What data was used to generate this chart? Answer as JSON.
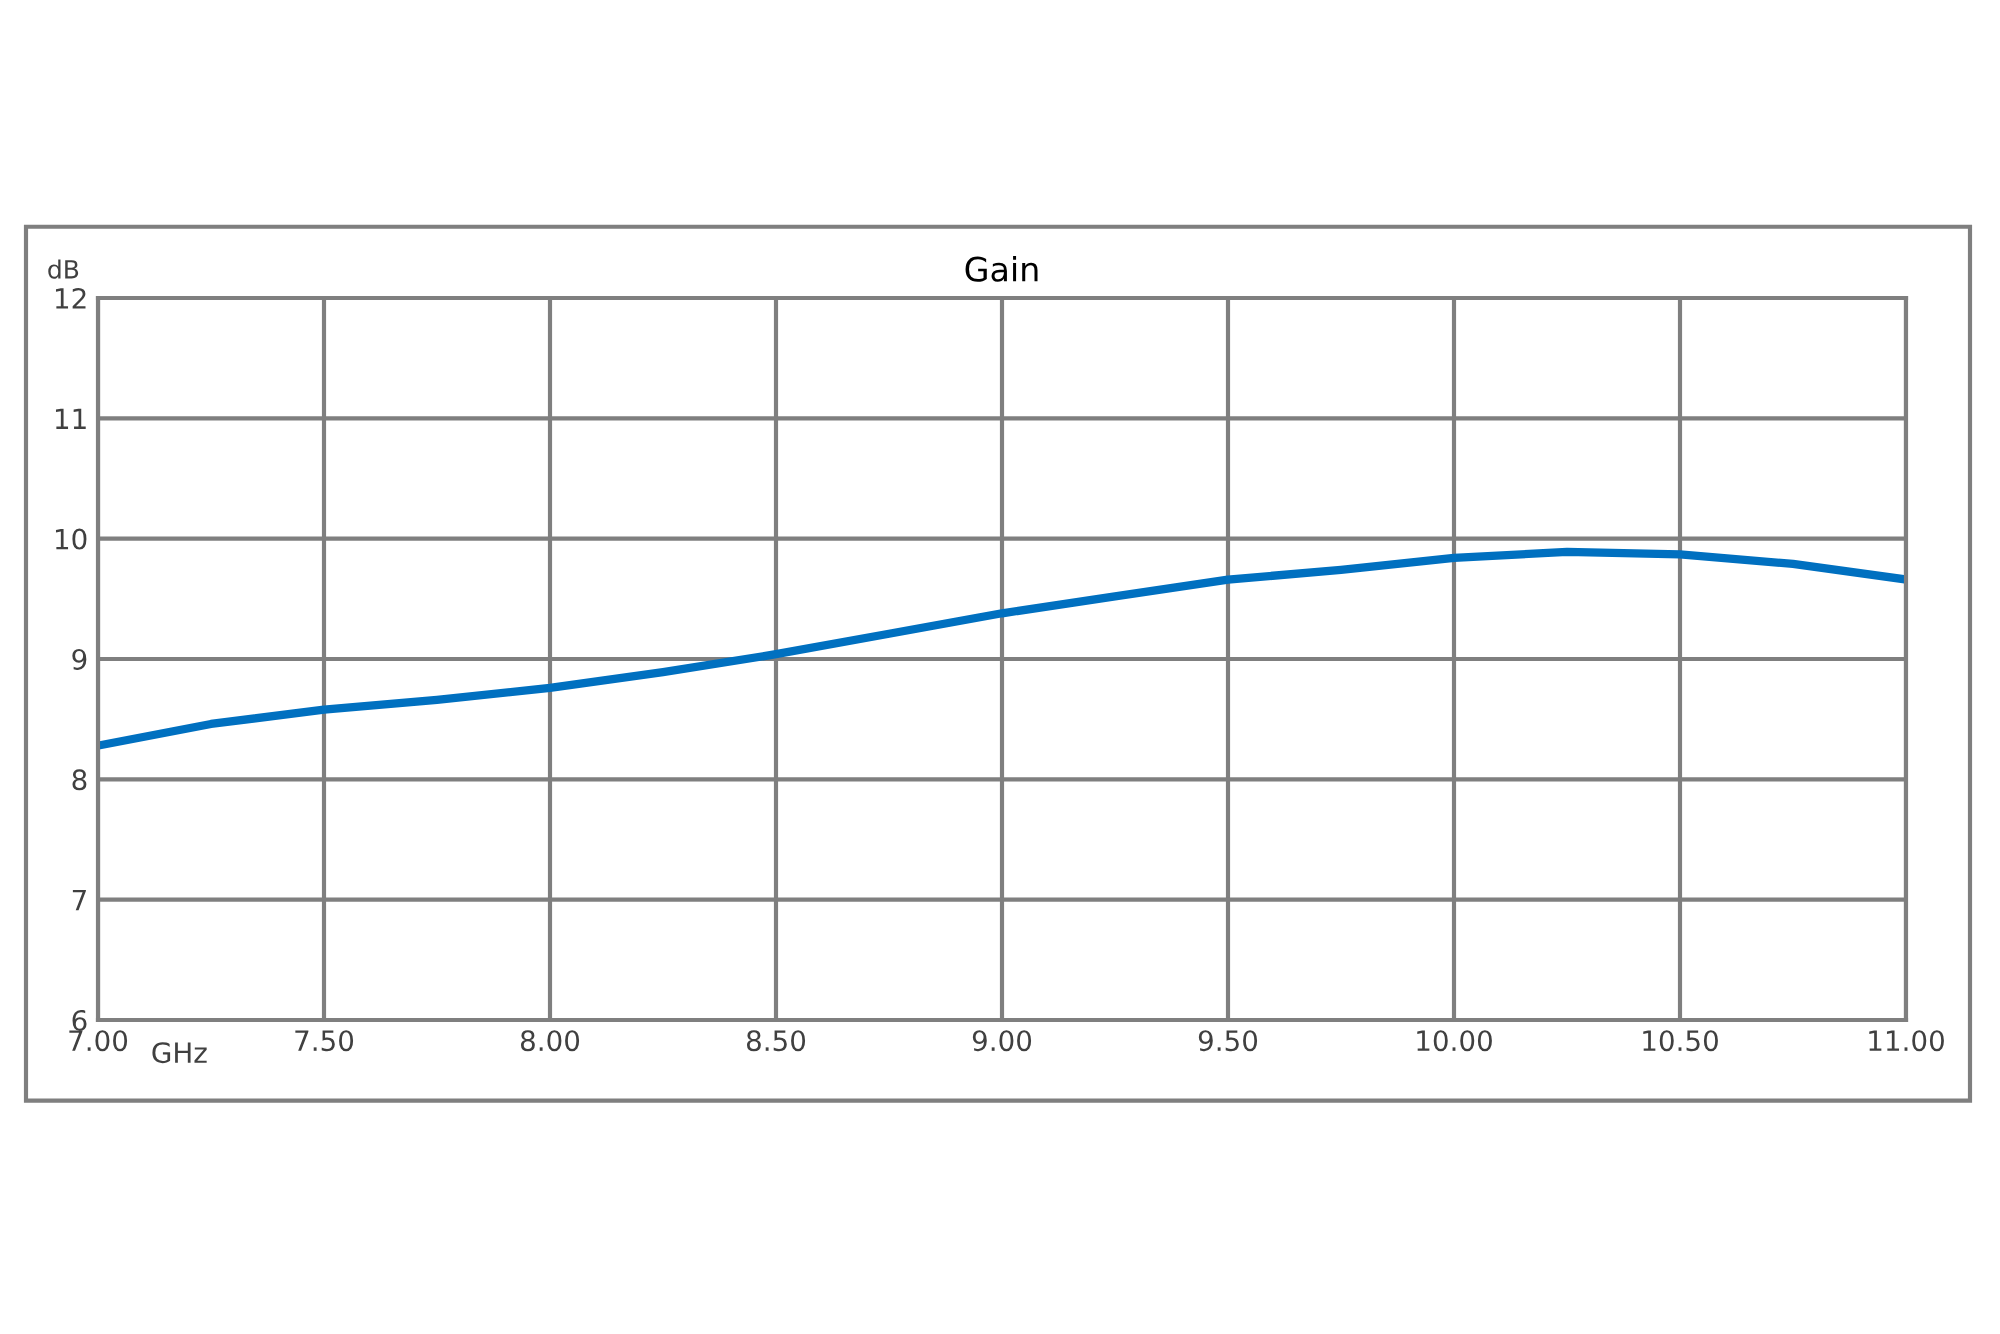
{
  "chart_data": {
    "type": "line",
    "title": "Gain",
    "xlabel": "GHz",
    "ylabel": "dB",
    "x": [
      7.0,
      7.25,
      7.5,
      7.75,
      8.0,
      8.25,
      8.5,
      8.75,
      9.0,
      9.25,
      9.5,
      9.75,
      10.0,
      10.25,
      10.5,
      10.75,
      11.0
    ],
    "series": [
      {
        "color": "#0070c0",
        "values": [
          8.28,
          8.46,
          8.58,
          8.66,
          8.76,
          8.89,
          9.04,
          9.21,
          9.38,
          9.52,
          9.66,
          9.74,
          9.84,
          9.89,
          9.87,
          9.79,
          9.66
        ]
      }
    ],
    "xlim": [
      7,
      11
    ],
    "ylim": [
      6,
      12
    ],
    "xticks": [
      {
        "value": 7,
        "label": "7.00"
      },
      {
        "value": 7.5,
        "label": "7.50"
      },
      {
        "value": 8,
        "label": "8.00"
      },
      {
        "value": 8.5,
        "label": "8.50"
      },
      {
        "value": 9,
        "label": "9.00"
      },
      {
        "value": 9.5,
        "label": "9.50"
      },
      {
        "value": 10,
        "label": "10.00"
      },
      {
        "value": 10.5,
        "label": "10.50"
      },
      {
        "value": 11,
        "label": "11.00"
      }
    ],
    "yticks": [
      6,
      7,
      8,
      9,
      10,
      11,
      12
    ],
    "grid": true,
    "legend": false,
    "marker": "none",
    "line_style": "solid"
  }
}
